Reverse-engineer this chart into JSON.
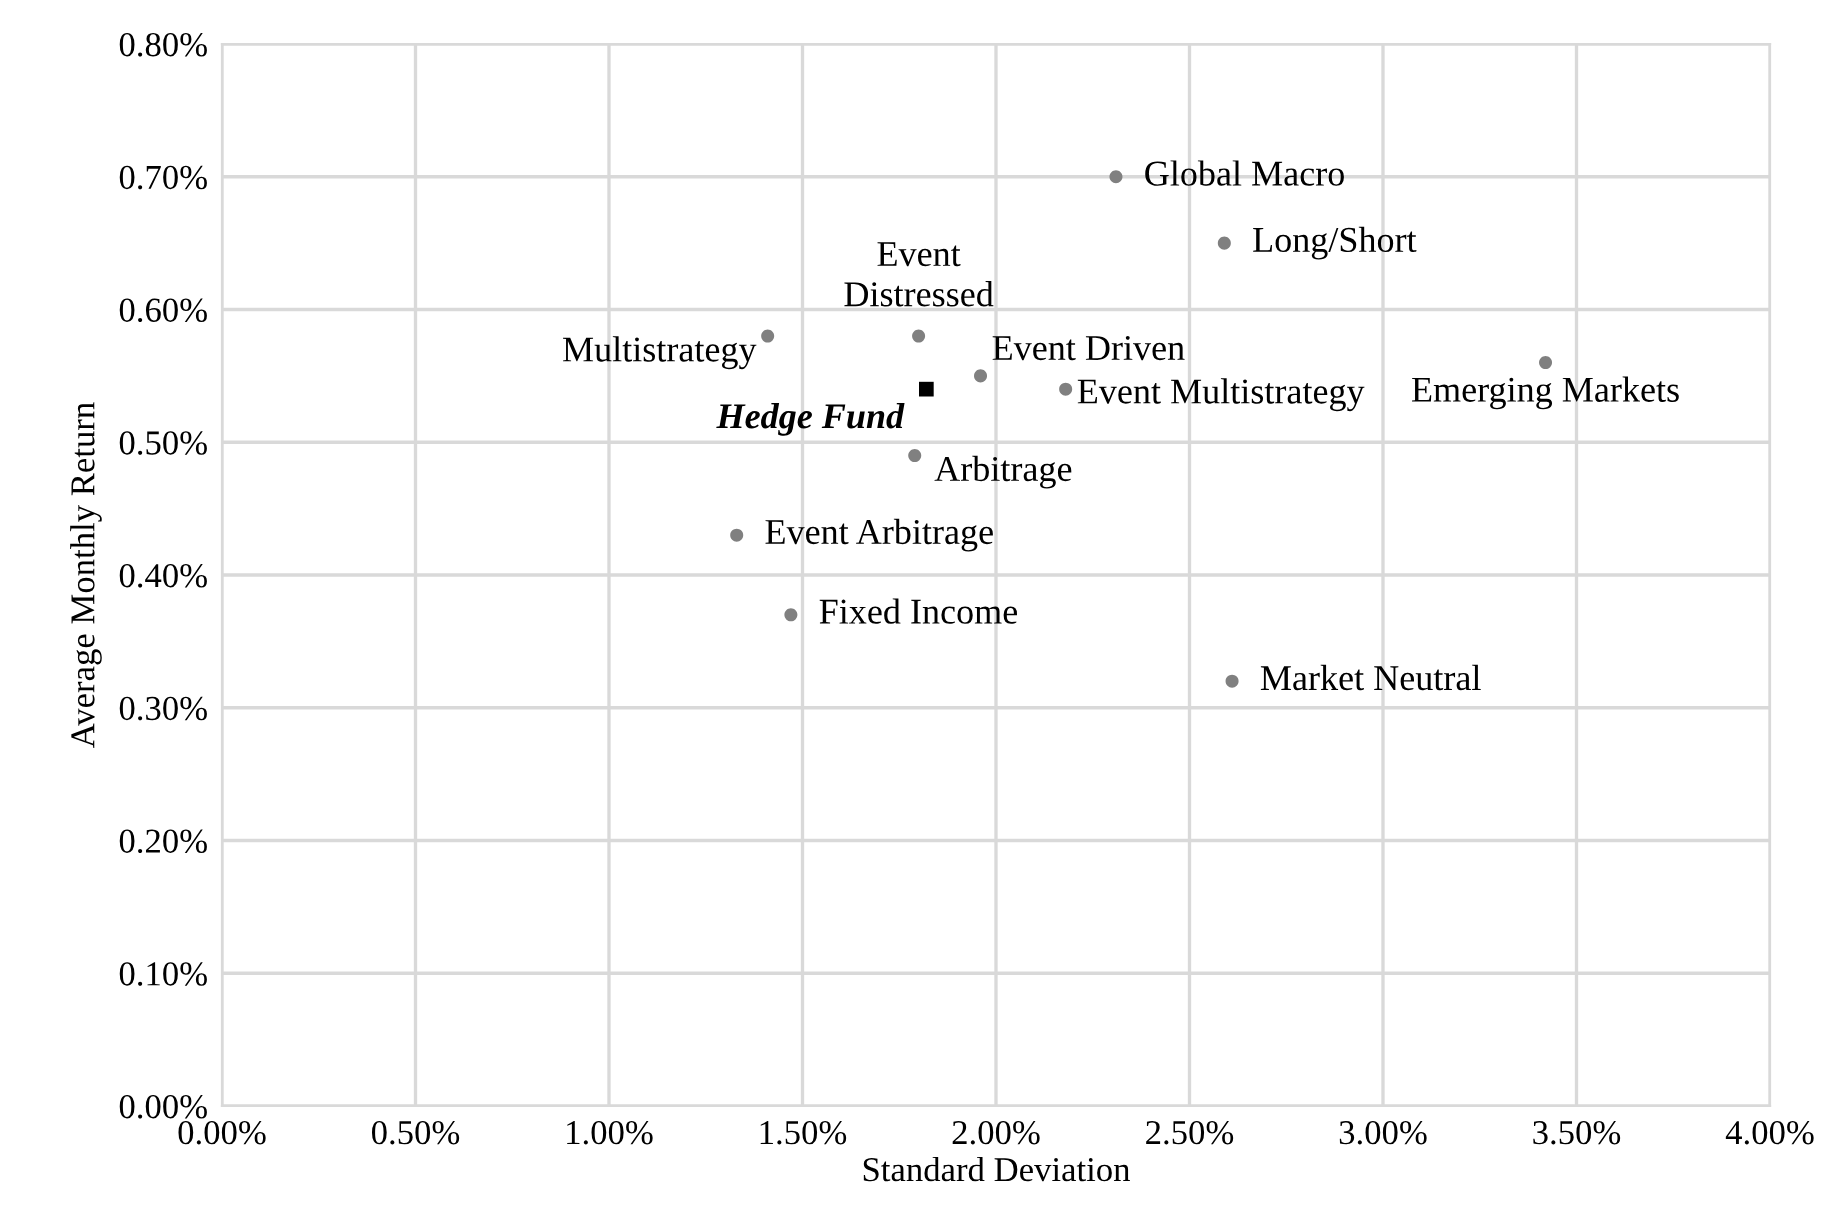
{
  "chart_data": {
    "type": "scatter",
    "xlabel": "Standard Deviation",
    "ylabel": "Average Monthly Return",
    "series": [
      {
        "color": "#808080",
        "marker": "circle",
        "x": [
          2.31,
          2.59,
          1.8,
          1.41,
          1.96,
          2.18,
          3.42,
          1.79,
          1.33,
          1.47,
          2.61
        ],
        "values": [
          0.7,
          0.65,
          0.58,
          0.58,
          0.55,
          0.54,
          0.56,
          0.49,
          0.43,
          0.37,
          0.32
        ]
      },
      {
        "name": "Hedge Fund",
        "color": "#000000",
        "marker": "square",
        "x": [
          1.82
        ],
        "values": [
          0.54
        ]
      }
    ],
    "annotations": [
      {
        "text": "Global Macro",
        "x": 2.31,
        "y": 0.7
      },
      {
        "text": "Long/Short",
        "x": 2.59,
        "y": 0.65
      },
      {
        "text": "Event\nDistressed",
        "x": 1.8,
        "y": 0.58
      },
      {
        "text": "Multistrategy",
        "x": 1.41,
        "y": 0.58
      },
      {
        "text": "Event Driven",
        "x": 1.96,
        "y": 0.55
      },
      {
        "text": "Event Multistrategy",
        "x": 2.18,
        "y": 0.54
      },
      {
        "text": "Emerging Markets",
        "x": 3.42,
        "y": 0.56
      },
      {
        "text": "Arbitrage",
        "x": 1.79,
        "y": 0.49
      },
      {
        "text": "Event Arbitrage",
        "x": 1.33,
        "y": 0.43
      },
      {
        "text": "Fixed Income",
        "x": 1.47,
        "y": 0.37
      },
      {
        "text": "Market Neutral",
        "x": 2.61,
        "y": 0.32
      }
    ],
    "xlim": [
      0,
      4
    ],
    "ylim": [
      0,
      0.8
    ],
    "xticks": [
      {
        "value": 0,
        "label": "0.00%"
      },
      {
        "value": 0.5,
        "label": "0.50%"
      },
      {
        "value": 1,
        "label": "1.00%"
      },
      {
        "value": 1.5,
        "label": "1.50%"
      },
      {
        "value": 2,
        "label": "2.00%"
      },
      {
        "value": 2.5,
        "label": "2.50%"
      },
      {
        "value": 3,
        "label": "3.00%"
      },
      {
        "value": 3.5,
        "label": "3.50%"
      },
      {
        "value": 4,
        "label": "4.00%"
      }
    ],
    "yticks": [
      {
        "value": 0,
        "label": "0.00%"
      },
      {
        "value": 0.1,
        "label": "0.10%"
      },
      {
        "value": 0.2,
        "label": "0.20%"
      },
      {
        "value": 0.3,
        "label": "0.30%"
      },
      {
        "value": 0.4,
        "label": "0.40%"
      },
      {
        "value": 0.5,
        "label": "0.50%"
      },
      {
        "value": 0.6,
        "label": "0.60%"
      },
      {
        "value": 0.7,
        "label": "0.70%"
      },
      {
        "value": 0.8,
        "label": "0.80%"
      }
    ],
    "grid": true,
    "legend": false
  }
}
